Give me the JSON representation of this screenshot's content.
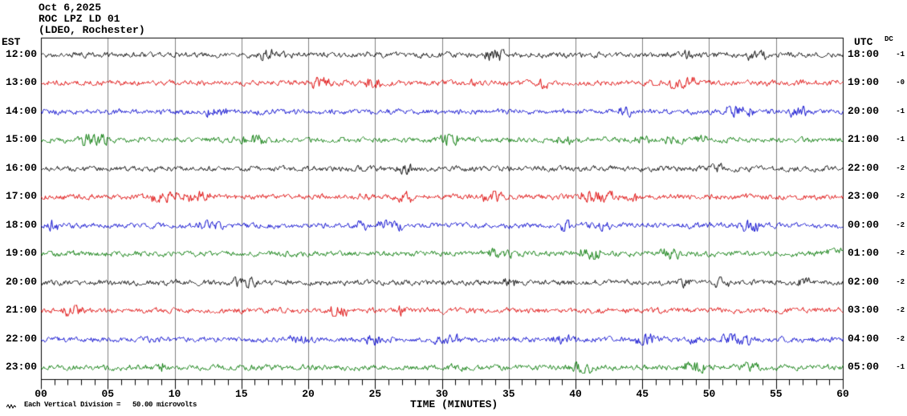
{
  "header": {
    "date": "Oct 6,2025",
    "station": "ROC LPZ LD 01",
    "network": "(LDEO, Rochester)"
  },
  "columns": {
    "left_timezone": "EST",
    "right_timezone": "UTC",
    "dc_header": "DC"
  },
  "x_axis": {
    "label": "TIME (MINUTES)",
    "major_tick_labels": [
      "00",
      "05",
      "10",
      "15",
      "20",
      "25",
      "30",
      "35",
      "40",
      "45",
      "50",
      "55",
      "60"
    ],
    "major_tick_every_minutes": 5,
    "minor_tick_every_minutes": 1
  },
  "footer": {
    "scale_note": "Each Vertical Division =   50.00 microvolts",
    "scale_marker_icon": "wave-scale-marker"
  },
  "chart_data": {
    "type": "line",
    "title": "ROC LPZ LD 01 helicorder record, Oct 6,2025 (LDEO, Rochester)",
    "xlabel": "TIME (MINUTES)",
    "x_range_minutes": [
      0,
      60
    ],
    "vertical_division_microvolts": 50.0,
    "description": "12 hourly seismogram traces of low-amplitude background noise (peak-to-peak roughly 5-15 microvolts), no large events",
    "grid": true,
    "grid_color": "#808080",
    "frame_color": "#000000",
    "background_color": "#ffffff",
    "trace_color_cycle": [
      "#000000",
      "#dd0000",
      "#0000cc",
      "#007700"
    ],
    "noise_peak_to_peak_microvolts": 8,
    "rows": [
      {
        "est": "12:00",
        "utc": "18:00",
        "dc": "-1",
        "color": "#000000"
      },
      {
        "est": "13:00",
        "utc": "19:00",
        "dc": "-0",
        "color": "#dd0000"
      },
      {
        "est": "14:00",
        "utc": "20:00",
        "dc": "-1",
        "color": "#0000cc"
      },
      {
        "est": "15:00",
        "utc": "21:00",
        "dc": "-1",
        "color": "#007700"
      },
      {
        "est": "16:00",
        "utc": "22:00",
        "dc": "-2",
        "color": "#000000"
      },
      {
        "est": "17:00",
        "utc": "23:00",
        "dc": "-2",
        "color": "#dd0000"
      },
      {
        "est": "18:00",
        "utc": "00:00",
        "dc": "-2",
        "color": "#0000cc"
      },
      {
        "est": "19:00",
        "utc": "01:00",
        "dc": "-2",
        "color": "#007700"
      },
      {
        "est": "20:00",
        "utc": "02:00",
        "dc": "-2",
        "color": "#000000"
      },
      {
        "est": "21:00",
        "utc": "03:00",
        "dc": "-2",
        "color": "#dd0000"
      },
      {
        "est": "22:00",
        "utc": "04:00",
        "dc": "-2",
        "color": "#0000cc"
      },
      {
        "est": "23:00",
        "utc": "05:00",
        "dc": "-1",
        "color": "#007700"
      }
    ]
  }
}
